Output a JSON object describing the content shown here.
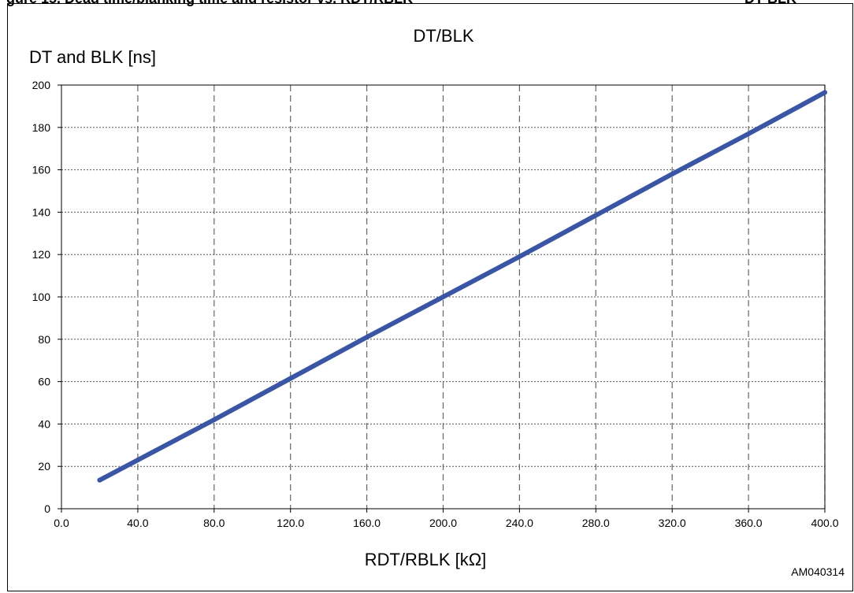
{
  "header_fragment": {
    "left": "gure 15. Dead time/blanking time and resistor vs. RDT/RBLK",
    "right": "DT    BLK"
  },
  "figure_id": "AM040314",
  "chart_data": {
    "type": "line",
    "title": "DT/BLK",
    "ylabel": "DT and BLK [ns]",
    "xlabel": "RDT/RBLK [kΩ]",
    "xlim": [
      0,
      400
    ],
    "ylim": [
      0,
      200
    ],
    "x_ticks": [
      0,
      40,
      80,
      120,
      160,
      200,
      240,
      280,
      320,
      360,
      400
    ],
    "x_tick_labels": [
      "0.0",
      "40.0",
      "80.0",
      "120.0",
      "160.0",
      "200.0",
      "240.0",
      "280.0",
      "320.0",
      "360.0",
      "400.0"
    ],
    "y_ticks": [
      0,
      20,
      40,
      60,
      80,
      100,
      120,
      140,
      160,
      180,
      200
    ],
    "y_tick_labels": [
      "0",
      "20",
      "40",
      "60",
      "80",
      "100",
      "120",
      "140",
      "160",
      "180",
      "200"
    ],
    "grid": true,
    "series": [
      {
        "color": "#3a55a4",
        "x": [
          20,
          40,
          80,
          120,
          160,
          200,
          240,
          280,
          320,
          360,
          400
        ],
        "y": [
          13.5,
          23,
          42,
          61.5,
          81,
          100,
          119,
          138.5,
          158,
          177,
          196.5
        ]
      }
    ]
  }
}
